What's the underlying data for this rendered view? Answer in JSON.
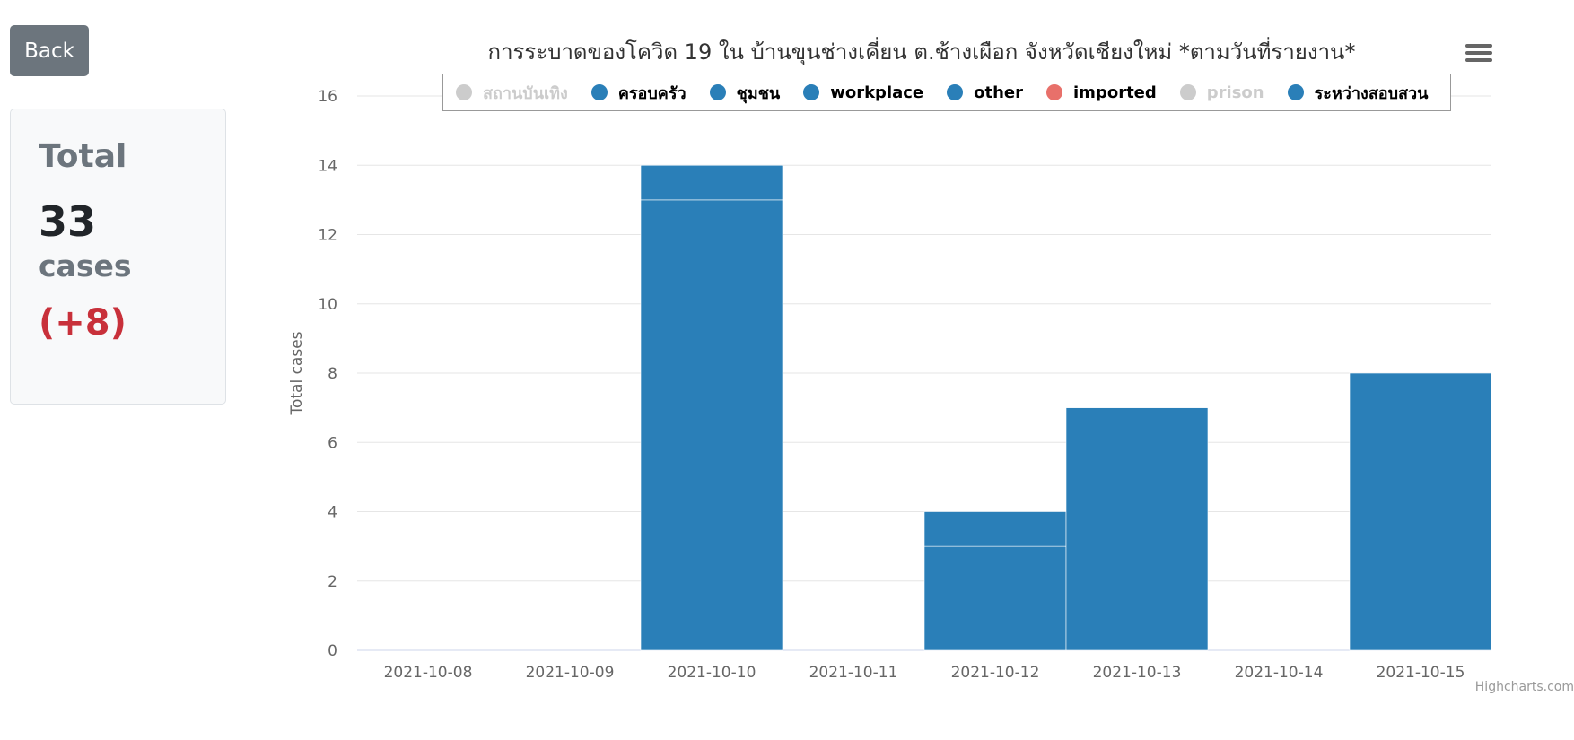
{
  "back_label": "Back",
  "total_card": {
    "label": "Total",
    "number": "33",
    "unit": "cases",
    "delta": "(+8)"
  },
  "menu_icon": "hamburger-menu-icon",
  "credits": "Highcharts.com",
  "colors": {
    "bar": "#2a7fb8",
    "legend_active": "#2a7fb8",
    "legend_imported": "#e8706a",
    "legend_hidden": "#cccccc",
    "grid": "#e6e6e6",
    "delta": "#c8303a"
  },
  "chart_data": {
    "type": "bar",
    "title": "การระบาดของโควิด 19 ใน บ้านขุนช่างเคี่ยน ต.ช้างเผือก จังหวัดเชียงใหม่ *ตามวันที่รายงาน*",
    "xlabel": "",
    "ylabel": "Total cases",
    "ylim": [
      0,
      16
    ],
    "yticks": [
      0,
      2,
      4,
      6,
      8,
      10,
      12,
      14,
      16
    ],
    "categories": [
      "2021-10-08",
      "2021-10-09",
      "2021-10-10",
      "2021-10-11",
      "2021-10-12",
      "2021-10-13",
      "2021-10-14",
      "2021-10-15"
    ],
    "stacked": true,
    "legend_position": "top",
    "grid": true,
    "legend": [
      {
        "name": "สถานบันเทิง",
        "hidden": true
      },
      {
        "name": "ครอบครัว",
        "hidden": false
      },
      {
        "name": "ชุมชน",
        "hidden": false
      },
      {
        "name": "workplace",
        "hidden": false
      },
      {
        "name": "other",
        "hidden": false
      },
      {
        "name": "imported",
        "hidden": false
      },
      {
        "name": "prison",
        "hidden": true
      },
      {
        "name": "ระหว่างสอบสวน",
        "hidden": false
      }
    ],
    "stacks": [
      {
        "category": "2021-10-10",
        "segments": [
          13,
          1
        ]
      },
      {
        "category": "2021-10-12",
        "segments": [
          3,
          1
        ]
      },
      {
        "category": "2021-10-13",
        "segments": [
          7
        ]
      },
      {
        "category": "2021-10-15",
        "segments": [
          8
        ]
      }
    ]
  }
}
